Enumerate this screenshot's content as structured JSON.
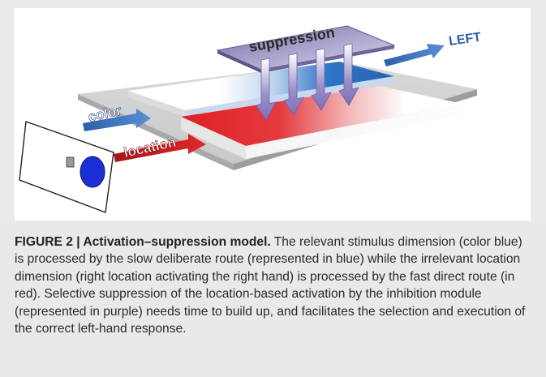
{
  "diagram": {
    "labels": {
      "suppression": "suppression",
      "left": "LEFT",
      "color": "color",
      "location": "location"
    },
    "colors": {
      "blue_route": "#3f72b8",
      "red_route": "#d41e26",
      "suppression_plate": "#8c86b8",
      "stimulus_circle": "#1a2fd6"
    }
  },
  "caption": {
    "label": "FIGURE 2 | ",
    "title": "Activation–suppression model.",
    "body": " The relevant stimulus dimension (color blue) is processed by the slow deliberate route (represented in blue) while the irrelevant location dimension (right location activating the right hand) is processed by the fast direct route (in red). Selective suppression of the location-based activation by the inhibition module (represented in purple) needs time to build up, and facilitates the selection and execution of the correct left-hand response."
  }
}
